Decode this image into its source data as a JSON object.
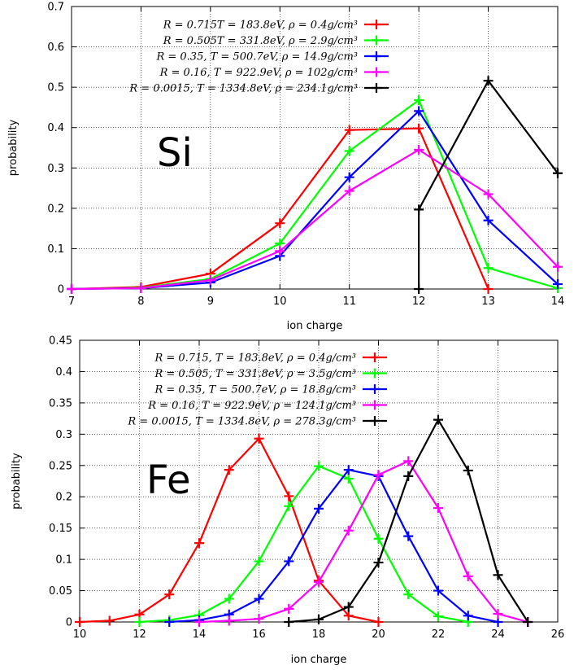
{
  "chart_data": [
    {
      "type": "line",
      "xlabel": "ion charge",
      "ylabel": "probability",
      "annotation": "Si",
      "xlim": [
        7,
        14
      ],
      "ylim": [
        0,
        0.7
      ],
      "xticks": [
        7,
        8,
        9,
        10,
        11,
        12,
        13,
        14
      ],
      "yticks": [
        0,
        0.1,
        0.2,
        0.3,
        0.4,
        0.5,
        0.6,
        0.7
      ],
      "ytick_labels": [
        "0",
        "0.1",
        "0.2",
        "0.3",
        "0.4",
        "0.5",
        "0.6",
        "0.7"
      ],
      "grid": true,
      "legend_position": "top-left",
      "series": [
        {
          "name": "R = 0.715T = 183.8eV, ρ = 0.4g/cm³",
          "color": "#ff0000",
          "x": [
            7,
            8,
            9,
            10,
            11,
            12,
            13
          ],
          "y": [
            0.0,
            0.005,
            0.038,
            0.163,
            0.394,
            0.398,
            0.0
          ]
        },
        {
          "name": "R = 0.505T = 331.8eV, ρ = 2.9g/cm³",
          "color": "#00ff00",
          "x": [
            7,
            8,
            9,
            10,
            11,
            12,
            13,
            14
          ],
          "y": [
            0.0,
            0.003,
            0.025,
            0.113,
            0.342,
            0.468,
            0.052,
            0.002
          ]
        },
        {
          "name": "R = 0.35, T = 500.7eV, ρ = 14.9g/cm³",
          "color": "#0000ff",
          "x": [
            7,
            8,
            9,
            10,
            11,
            12,
            13,
            14
          ],
          "y": [
            0.0,
            0.002,
            0.016,
            0.082,
            0.277,
            0.441,
            0.17,
            0.012
          ]
        },
        {
          "name": "R = 0.16, T = 922.9eV, ρ = 102g/cm³",
          "color": "#ff00ff",
          "x": [
            7,
            8,
            9,
            10,
            11,
            12,
            13,
            14
          ],
          "y": [
            0.0,
            0.002,
            0.022,
            0.094,
            0.243,
            0.345,
            0.235,
            0.055
          ]
        },
        {
          "name": "R = 0.0015, T = 1334.8eV, ρ = 234.1g/cm³",
          "color": "#000000",
          "x": [
            12,
            12,
            13,
            14
          ],
          "y": [
            0.0,
            0.197,
            0.516,
            0.287
          ]
        }
      ]
    },
    {
      "type": "line",
      "xlabel": "ion charge",
      "ylabel": "probability",
      "annotation": "Fe",
      "xlim": [
        10,
        26
      ],
      "ylim": [
        0,
        0.45
      ],
      "xticks": [
        10,
        12,
        14,
        16,
        18,
        20,
        22,
        24,
        26
      ],
      "yticks": [
        0,
        0.05,
        0.1,
        0.15,
        0.2,
        0.25,
        0.3,
        0.35,
        0.4,
        0.45
      ],
      "ytick_labels": [
        "0",
        "0.05",
        "0.1",
        "0.15",
        "0.2",
        "0.25",
        "0.3",
        "0.35",
        "0.4",
        "0.45"
      ],
      "grid": true,
      "legend_position": "top-center",
      "series": [
        {
          "name": "R = 0.715, T = 183.8eV, ρ = 0.4g/cm³",
          "color": "#ff0000",
          "x": [
            10,
            11,
            12,
            13,
            14,
            15,
            16,
            17,
            18,
            19,
            20
          ],
          "y": [
            0.0,
            0.002,
            0.012,
            0.044,
            0.126,
            0.243,
            0.293,
            0.201,
            0.066,
            0.01,
            0.0
          ]
        },
        {
          "name": "R = 0.505, T = 331.8eV, ρ = 3.5g/cm³",
          "color": "#00ff00",
          "x": [
            12,
            13,
            14,
            15,
            16,
            17,
            18,
            19,
            20,
            21,
            22,
            23
          ],
          "y": [
            0.0,
            0.003,
            0.011,
            0.037,
            0.097,
            0.185,
            0.249,
            0.229,
            0.133,
            0.044,
            0.009,
            0.0
          ]
        },
        {
          "name": "R = 0.35, T = 500.7eV, ρ = 18.8g/cm³",
          "color": "#0000ff",
          "x": [
            13,
            14,
            15,
            16,
            17,
            18,
            19,
            20,
            21,
            22,
            23,
            24
          ],
          "y": [
            0.0,
            0.003,
            0.012,
            0.037,
            0.097,
            0.181,
            0.243,
            0.233,
            0.137,
            0.05,
            0.01,
            0.0
          ]
        },
        {
          "name": "R = 0.16, T = 922.9eV, ρ = 124.1g/cm³",
          "color": "#ff00ff",
          "x": [
            14,
            15,
            16,
            17,
            18,
            19,
            20,
            21,
            22,
            23,
            24,
            25
          ],
          "y": [
            0.0,
            0.002,
            0.005,
            0.021,
            0.064,
            0.146,
            0.235,
            0.257,
            0.182,
            0.073,
            0.013,
            0.0
          ]
        },
        {
          "name": "R = 0.0015, T = 1334.8eV, ρ = 278.3g/cm³",
          "color": "#000000",
          "x": [
            17,
            18,
            19,
            20,
            21,
            22,
            23,
            24,
            25
          ],
          "y": [
            0.0,
            0.004,
            0.024,
            0.095,
            0.233,
            0.323,
            0.242,
            0.075,
            0.0
          ]
        }
      ]
    }
  ]
}
